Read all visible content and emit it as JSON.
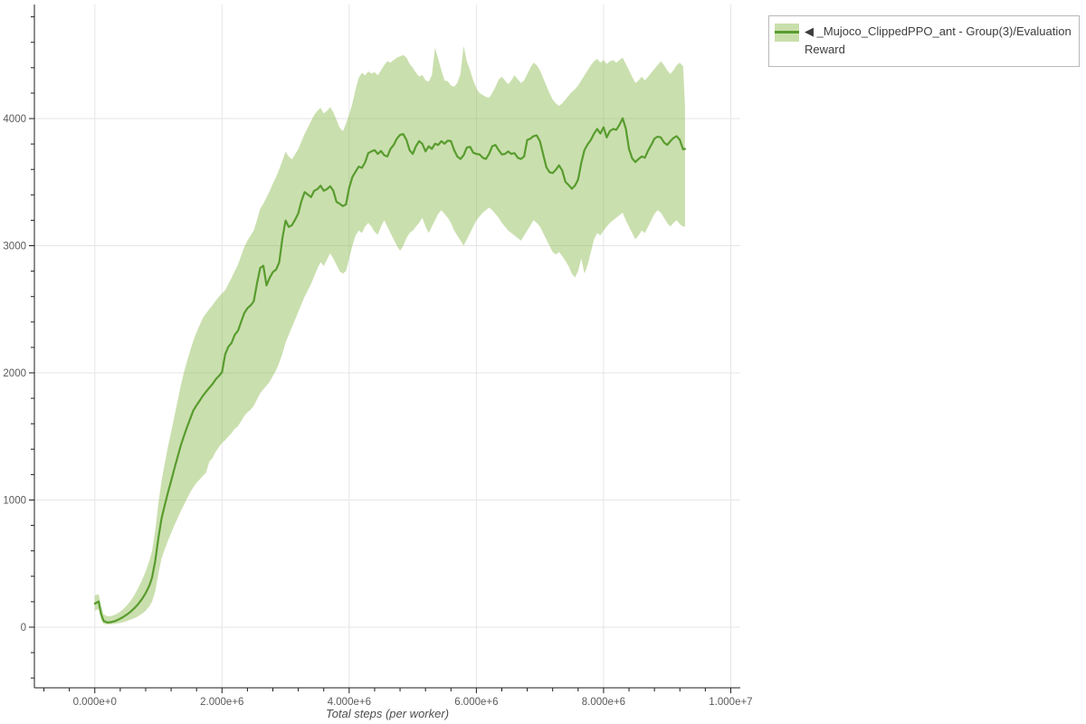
{
  "legend": {
    "items": [
      {
        "label": "◀ _Mujoco_ClippedPPO_ant - Group(3)/Evaluation Reward",
        "line_color": "#589c2e",
        "band_color": "#c9dfab"
      }
    ]
  },
  "colors": {
    "background": "#ffffff",
    "grid": "#e5e5e5",
    "axis": "#1c1c1c",
    "tick_label": "#5a5a5a",
    "xlabel_text": "#4d4d4d",
    "line": "#589c2e",
    "band": "#8ab94b",
    "legend_border": "#b8b8b8",
    "legend_text": "#3d3d3d"
  },
  "chart_data": {
    "type": "line",
    "title": "",
    "xlabel": "Total steps (per worker)",
    "ylabel": "",
    "grid": true,
    "legend_position": "top-right",
    "x_range": [
      -950000,
      10150000
    ],
    "y_range": [
      -477,
      4897
    ],
    "x_ticks": {
      "values": [
        0,
        2000000,
        4000000,
        6000000,
        8000000,
        10000000
      ],
      "labels": [
        "0.000e+0",
        "2.000e+6",
        "4.000e+6",
        "6.000e+6",
        "8.000e+6",
        "1.000e+7"
      ],
      "minor_step": 400000
    },
    "y_ticks": {
      "values": [
        0,
        1000,
        2000,
        3000,
        4000
      ],
      "labels": [
        "0",
        "1000",
        "2000",
        "3000",
        "4000"
      ],
      "minor_step": 200
    },
    "series": [
      {
        "name": "_Mujoco_ClippedPPO_ant - Group(3)/Evaluation Reward",
        "color": "#589c2e",
        "band_color": "#8ab94b",
        "band_opacity": 0.45,
        "x_unit_steps": 1000000,
        "points_x_lo_mean_hi": [
          [
            0.0,
            130,
            185,
            250
          ],
          [
            0.06,
            140,
            202,
            258
          ],
          [
            0.1,
            60,
            100,
            165
          ],
          [
            0.14,
            25,
            48,
            100
          ],
          [
            0.2,
            22,
            36,
            85
          ],
          [
            0.26,
            24,
            40,
            88
          ],
          [
            0.32,
            27,
            48,
            98
          ],
          [
            0.38,
            32,
            62,
            115
          ],
          [
            0.44,
            38,
            78,
            138
          ],
          [
            0.5,
            48,
            98,
            168
          ],
          [
            0.56,
            58,
            120,
            205
          ],
          [
            0.62,
            70,
            148,
            250
          ],
          [
            0.68,
            85,
            180,
            305
          ],
          [
            0.74,
            105,
            220,
            368
          ],
          [
            0.8,
            130,
            268,
            440
          ],
          [
            0.86,
            165,
            330,
            525
          ],
          [
            0.9,
            200,
            390,
            600
          ],
          [
            0.95,
            280,
            520,
            755
          ],
          [
            1.0,
            420,
            700,
            975
          ],
          [
            1.05,
            540,
            855,
            1150
          ],
          [
            1.1,
            615,
            960,
            1290
          ],
          [
            1.15,
            680,
            1060,
            1420
          ],
          [
            1.2,
            740,
            1150,
            1535
          ],
          [
            1.25,
            800,
            1245,
            1655
          ],
          [
            1.3,
            855,
            1335,
            1775
          ],
          [
            1.35,
            910,
            1425,
            1895
          ],
          [
            1.4,
            960,
            1500,
            2000
          ],
          [
            1.45,
            1010,
            1572,
            2090
          ],
          [
            1.5,
            1060,
            1640,
            2175
          ],
          [
            1.55,
            1100,
            1705,
            2255
          ],
          [
            1.6,
            1135,
            1745,
            2320
          ],
          [
            1.65,
            1162,
            1782,
            2378
          ],
          [
            1.7,
            1190,
            1820,
            2432
          ],
          [
            1.75,
            1215,
            1852,
            2468
          ],
          [
            1.8,
            1300,
            1882,
            2502
          ],
          [
            1.85,
            1330,
            1912,
            2532
          ],
          [
            1.9,
            1380,
            1948,
            2568
          ],
          [
            1.95,
            1415,
            1975,
            2598
          ],
          [
            2.0,
            1450,
            2005,
            2625
          ],
          [
            2.05,
            1470,
            2145,
            2650
          ],
          [
            2.1,
            1500,
            2205,
            2700
          ],
          [
            2.15,
            1525,
            2235,
            2745
          ],
          [
            2.2,
            1560,
            2300,
            2800
          ],
          [
            2.25,
            1580,
            2330,
            2850
          ],
          [
            2.3,
            1620,
            2400,
            2920
          ],
          [
            2.35,
            1660,
            2470,
            2990
          ],
          [
            2.4,
            1690,
            2508,
            3040
          ],
          [
            2.45,
            1710,
            2530,
            3080
          ],
          [
            2.5,
            1740,
            2562,
            3120
          ],
          [
            2.55,
            1790,
            2700,
            3200
          ],
          [
            2.6,
            1840,
            2825,
            3290
          ],
          [
            2.65,
            1870,
            2842,
            3330
          ],
          [
            2.7,
            1900,
            2688,
            3380
          ],
          [
            2.75,
            1930,
            2748,
            3430
          ],
          [
            2.8,
            1975,
            2792,
            3490
          ],
          [
            2.85,
            2020,
            2812,
            3540
          ],
          [
            2.9,
            2080,
            2868,
            3600
          ],
          [
            2.95,
            2150,
            3062,
            3670
          ],
          [
            3.0,
            2240,
            3198,
            3740
          ],
          [
            3.05,
            2300,
            3148,
            3700
          ],
          [
            3.1,
            2360,
            3162,
            3680
          ],
          [
            3.15,
            2420,
            3205,
            3720
          ],
          [
            3.2,
            2480,
            3255,
            3760
          ],
          [
            3.25,
            2540,
            3352,
            3820
          ],
          [
            3.3,
            2600,
            3422,
            3880
          ],
          [
            3.35,
            2650,
            3402,
            3930
          ],
          [
            3.4,
            2700,
            3382,
            3980
          ],
          [
            3.45,
            2760,
            3432,
            4030
          ],
          [
            3.5,
            2820,
            3445,
            4060
          ],
          [
            3.55,
            2870,
            3472,
            4085
          ],
          [
            3.6,
            2840,
            3432,
            4040
          ],
          [
            3.65,
            2890,
            3445,
            4060
          ],
          [
            3.7,
            2940,
            3468,
            4090
          ],
          [
            3.75,
            2900,
            3432,
            4050
          ],
          [
            3.8,
            2850,
            3345,
            3990
          ],
          [
            3.85,
            2800,
            3330,
            3930
          ],
          [
            3.9,
            2780,
            3312,
            3900
          ],
          [
            3.95,
            2800,
            3325,
            3960
          ],
          [
            4.0,
            2900,
            3455,
            4030
          ],
          [
            4.05,
            3000,
            3540,
            4120
          ],
          [
            4.1,
            3080,
            3582,
            4230
          ],
          [
            4.15,
            3120,
            3622,
            4320
          ],
          [
            4.2,
            3100,
            3612,
            4360
          ],
          [
            4.25,
            3150,
            3655,
            4340
          ],
          [
            4.3,
            3180,
            3728,
            4370
          ],
          [
            4.35,
            3150,
            3742,
            4355
          ],
          [
            4.4,
            3110,
            3752,
            4365
          ],
          [
            4.45,
            3086,
            3722,
            4340
          ],
          [
            4.5,
            3150,
            3745,
            4380
          ],
          [
            4.55,
            3200,
            3712,
            4420
          ],
          [
            4.6,
            3150,
            3702,
            4450
          ],
          [
            4.65,
            3100,
            3762,
            4440
          ],
          [
            4.7,
            3050,
            3792,
            4460
          ],
          [
            4.75,
            3000,
            3842,
            4480
          ],
          [
            4.8,
            2960,
            3872,
            4490
          ],
          [
            4.85,
            3000,
            3878,
            4500
          ],
          [
            4.9,
            3060,
            3832,
            4480
          ],
          [
            4.95,
            3100,
            3752,
            4430
          ],
          [
            5.0,
            3120,
            3722,
            4400
          ],
          [
            5.05,
            3150,
            3782,
            4360
          ],
          [
            5.1,
            3180,
            3822,
            4330
          ],
          [
            5.15,
            3220,
            3802,
            4343
          ],
          [
            5.2,
            3150,
            3742,
            4300
          ],
          [
            5.25,
            3100,
            3782,
            4290
          ],
          [
            5.3,
            3150,
            3762,
            4340
          ],
          [
            5.35,
            3200,
            3802,
            4557
          ],
          [
            5.4,
            3250,
            3792,
            4470
          ],
          [
            5.45,
            3280,
            3822,
            4380
          ],
          [
            5.5,
            3250,
            3802,
            4300
          ],
          [
            5.55,
            3220,
            3827,
            4293
          ],
          [
            5.6,
            3180,
            3822,
            4260
          ],
          [
            5.65,
            3120,
            3752,
            4250
          ],
          [
            5.7,
            3080,
            3702,
            4280
          ],
          [
            5.75,
            3040,
            3682,
            4350
          ],
          [
            5.8,
            3000,
            3712,
            4571
          ],
          [
            5.85,
            3050,
            3772,
            4450
          ],
          [
            5.9,
            3100,
            3778,
            4380
          ],
          [
            5.95,
            3150,
            3732,
            4300
          ],
          [
            6.0,
            3200,
            3722,
            4236
          ],
          [
            6.05,
            3230,
            3718,
            4200
          ],
          [
            6.1,
            3260,
            3692,
            4186
          ],
          [
            6.15,
            3280,
            3682,
            4170
          ],
          [
            6.2,
            3300,
            3722,
            4164
          ],
          [
            6.25,
            3280,
            3782,
            4200
          ],
          [
            6.3,
            3250,
            3792,
            4250
          ],
          [
            6.35,
            3220,
            3752,
            4307
          ],
          [
            6.4,
            3180,
            3718,
            4330
          ],
          [
            6.45,
            3150,
            3722,
            4300
          ],
          [
            6.5,
            3120,
            3742,
            4270
          ],
          [
            6.55,
            3100,
            3722,
            4300
          ],
          [
            6.6,
            3080,
            3728,
            4340
          ],
          [
            6.65,
            3060,
            3692,
            4310
          ],
          [
            6.7,
            3040,
            3682,
            4280
          ],
          [
            6.75,
            3080,
            3702,
            4300
          ],
          [
            6.8,
            3120,
            3832,
            4350
          ],
          [
            6.85,
            3160,
            3842,
            4400
          ],
          [
            6.9,
            3200,
            3862,
            4440
          ],
          [
            6.95,
            3180,
            3868,
            4420
          ],
          [
            7.0,
            3150,
            3822,
            4380
          ],
          [
            7.05,
            3100,
            3718,
            4320
          ],
          [
            7.1,
            3050,
            3618,
            4260
          ],
          [
            7.15,
            3000,
            3578,
            4200
          ],
          [
            7.2,
            2950,
            3572,
            4150
          ],
          [
            7.25,
            2930,
            3598,
            4120
          ],
          [
            7.3,
            2950,
            3632,
            4100
          ],
          [
            7.35,
            2920,
            3592,
            4120
          ],
          [
            7.4,
            2880,
            3502,
            4150
          ],
          [
            7.45,
            2840,
            3478,
            4180
          ],
          [
            7.5,
            2780,
            3448,
            4210
          ],
          [
            7.55,
            2750,
            3472,
            4230
          ],
          [
            7.6,
            2800,
            3522,
            4260
          ],
          [
            7.65,
            2900,
            3652,
            4300
          ],
          [
            7.7,
            2780,
            3752,
            4340
          ],
          [
            7.75,
            2850,
            3798,
            4380
          ],
          [
            7.8,
            2950,
            3832,
            4420
          ],
          [
            7.85,
            3050,
            3882,
            4450
          ],
          [
            7.9,
            3100,
            3918,
            4470
          ],
          [
            7.95,
            3080,
            3882,
            4440
          ],
          [
            8.0,
            3120,
            3932,
            4460
          ],
          [
            8.05,
            3150,
            3852,
            4430
          ],
          [
            8.1,
            3180,
            3902,
            4450
          ],
          [
            8.15,
            3200,
            3918,
            4460
          ],
          [
            8.2,
            3220,
            3912,
            4440
          ],
          [
            8.25,
            3240,
            3952,
            4460
          ],
          [
            8.3,
            3260,
            4002,
            4480
          ],
          [
            8.35,
            3200,
            3922,
            4430
          ],
          [
            8.4,
            3150,
            3762,
            4380
          ],
          [
            8.45,
            3100,
            3688,
            4330
          ],
          [
            8.5,
            3050,
            3658,
            4280
          ],
          [
            8.55,
            3080,
            3682,
            4300
          ],
          [
            8.6,
            3120,
            3702,
            4330
          ],
          [
            8.65,
            3100,
            3692,
            4300
          ],
          [
            8.7,
            3150,
            3748,
            4330
          ],
          [
            8.75,
            3200,
            3792,
            4360
          ],
          [
            8.8,
            3250,
            3842,
            4390
          ],
          [
            8.85,
            3280,
            3858,
            4420
          ],
          [
            8.9,
            3260,
            3852,
            4450
          ],
          [
            8.95,
            3220,
            3812,
            4420
          ],
          [
            9.0,
            3180,
            3792,
            4380
          ],
          [
            9.05,
            3150,
            3822,
            4350
          ],
          [
            9.1,
            3180,
            3848,
            4380
          ],
          [
            9.15,
            3200,
            3862,
            4420
          ],
          [
            9.2,
            3170,
            3832,
            4440
          ],
          [
            9.25,
            3150,
            3758,
            4410
          ],
          [
            9.28,
            3150,
            3762,
            4100
          ]
        ]
      }
    ]
  }
}
